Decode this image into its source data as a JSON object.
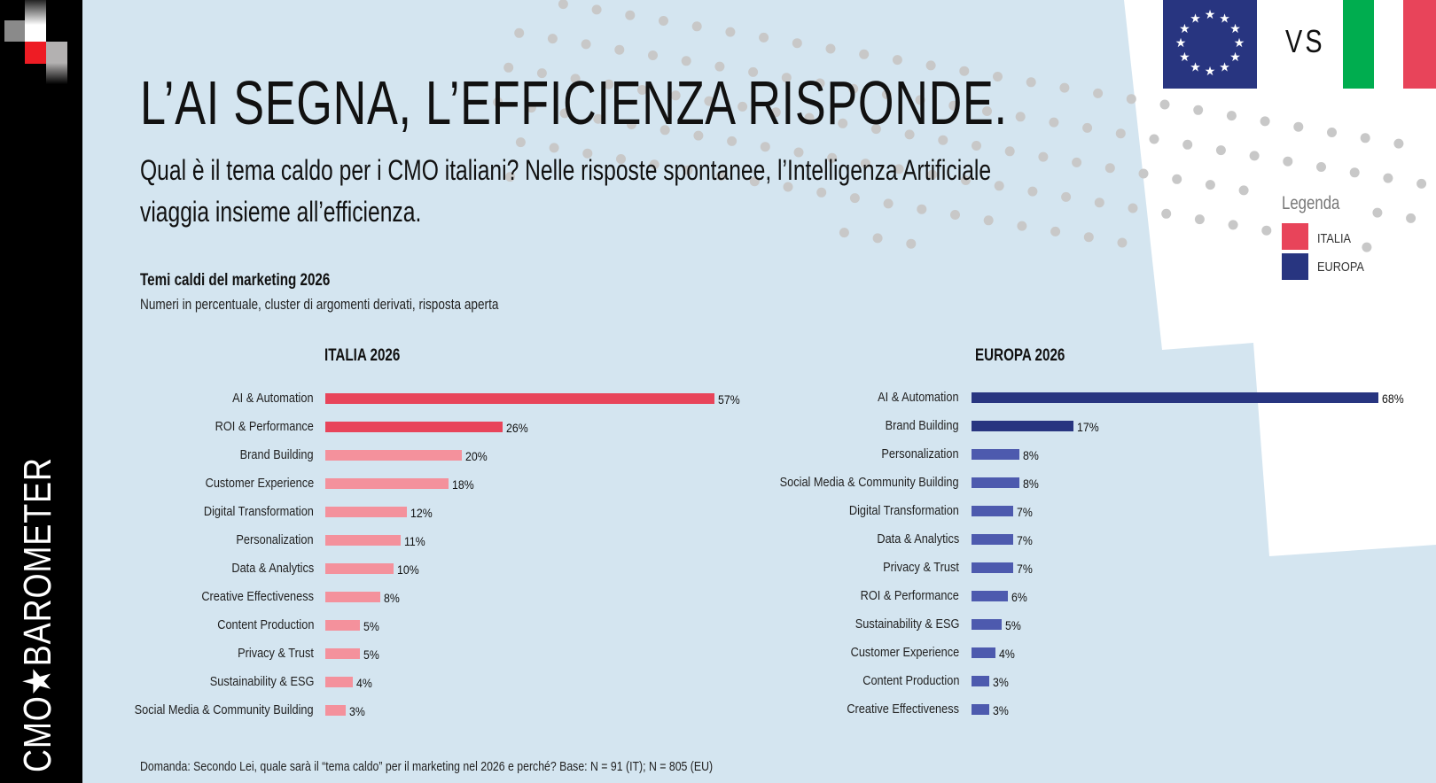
{
  "brand": {
    "vertical_text": "CMO★BAROMETER",
    "logo_red": "#ee1c24"
  },
  "header": {
    "title": "L’AI SEGNA, L’EFFICIENZA RISPONDE.",
    "subtitle_lines": [
      "Qual è il tema caldo per i CMO italiani? Nelle risposte spontanee, l’Intelligenza Artificiale",
      "viaggia insieme all’efficienza."
    ]
  },
  "comparison": {
    "vs_label": "VS",
    "flags": [
      "eu-flag-icon",
      "italy-flag-icon"
    ]
  },
  "legend": {
    "title": "Legenda",
    "items": [
      {
        "label": "ITALIA",
        "color": "#e8445a"
      },
      {
        "label": "EUROPA",
        "color": "#283580"
      }
    ]
  },
  "chart_title": "Temi caldi del marketing 2026",
  "chart_subtitle": "Numeri in percentuale, cluster di argomenti derivati, risposta aperta",
  "chart_data": [
    {
      "type": "bar",
      "orientation": "horizontal",
      "title": "ITALIA 2026",
      "unit": "%",
      "categories": [
        "AI & Automation",
        "ROI & Performance",
        "Brand Building",
        "Customer Experience",
        "Digital Transformation",
        "Personalization",
        "Data & Analytics",
        "Creative Effectiveness",
        "Content Production",
        "Privacy & Trust",
        "Sustainability & ESG",
        "Social Media & Community Building"
      ],
      "values": [
        57,
        26,
        20,
        18,
        12,
        11,
        10,
        8,
        5,
        5,
        4,
        3
      ],
      "value_labels": [
        "57%",
        "26%",
        "20%",
        "18%",
        "12%",
        "11%",
        "10%",
        "8%",
        "5%",
        "5%",
        "4%",
        "3%"
      ],
      "colors": {
        "highlight": "#e8445a",
        "other": "#f4919c",
        "highlight_count": 2
      },
      "grid": false
    },
    {
      "type": "bar",
      "orientation": "horizontal",
      "title": "EUROPA 2026",
      "unit": "%",
      "categories": [
        "AI & Automation",
        "Brand Building",
        "Personalization",
        "Social Media & Community Building",
        "Digital Transformation",
        "Data & Analytics",
        "Privacy & Trust",
        "ROI & Performance",
        "Sustainability & ESG",
        "Customer Experience",
        "Content Production",
        "Creative Effectiveness"
      ],
      "values": [
        68,
        17,
        8,
        8,
        7,
        7,
        7,
        6,
        5,
        4,
        3,
        3
      ],
      "value_labels": [
        "68%",
        "17%",
        "8%",
        "8%",
        "7%",
        "7%",
        "7%",
        "6%",
        "5%",
        "4%",
        "3%",
        "3%"
      ],
      "colors": {
        "highlight": "#283580",
        "other": "#4d5aae",
        "highlight_count": 2
      },
      "grid": false
    }
  ],
  "footnote": "Domanda: Secondo Lei, quale sarà il “tema caldo” per il marketing nel 2026 e perché? Base: N = 91 (IT); N = 805 (EU)"
}
